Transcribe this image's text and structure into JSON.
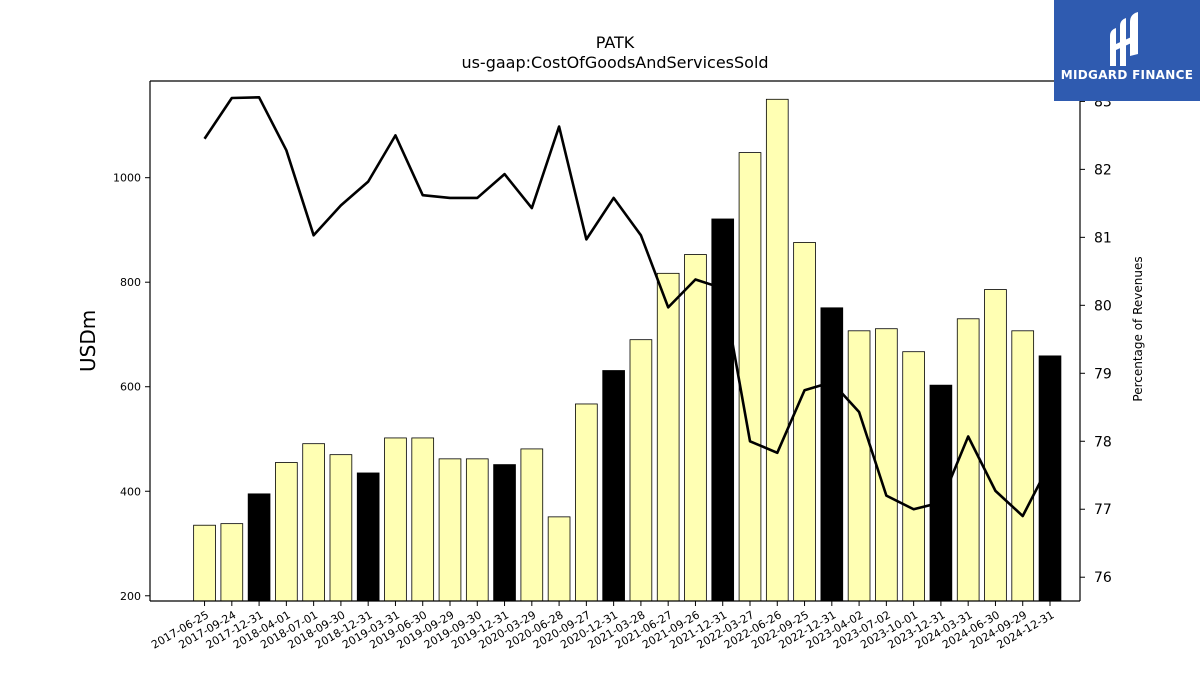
{
  "chart_data": {
    "type": "bar",
    "title": "PATK",
    "subtitle": "us-gaap:CostOfGoodsAndServicesSold",
    "ylabel": "USDm",
    "y2label": "Percentage of Revenues",
    "ylim": [
      190,
      1185
    ],
    "y2lim": [
      75.65,
      83.3
    ],
    "yticks": [
      200,
      400,
      600,
      800,
      1000
    ],
    "y2ticks": [
      76,
      77,
      78,
      79,
      80,
      81,
      82,
      83
    ],
    "categories": [
      "2017-06-25",
      "2017-09-24",
      "2017-12-31",
      "2018-04-01",
      "2018-07-01",
      "2018-09-30",
      "2018-12-31",
      "2019-03-31",
      "2019-06-30",
      "2019-09-29",
      "2019-09-30",
      "2019-12-31",
      "2020-03-29",
      "2020-06-28",
      "2020-09-27",
      "2020-12-31",
      "2021-03-28",
      "2021-06-27",
      "2021-09-26",
      "2021-12-31",
      "2022-03-27",
      "2022-06-26",
      "2022-09-25",
      "2022-12-31",
      "2023-04-02",
      "2023-07-02",
      "2023-10-01",
      "2023-12-31",
      "2024-03-31",
      "2024-06-30",
      "2024-09-29",
      "2024-12-31"
    ],
    "series": [
      {
        "name": "",
        "type": "bar",
        "values": [
          335,
          338,
          395,
          455,
          491,
          470,
          435,
          502,
          502,
          462,
          462,
          451,
          481,
          351,
          567,
          631,
          690,
          817,
          853,
          921,
          1048,
          1150,
          876,
          751,
          707,
          711,
          667,
          603,
          730,
          786,
          707,
          659
        ]
      },
      {
        "name": "",
        "type": "line",
        "axis": "right",
        "values": [
          82.45,
          83.05,
          83.06,
          82.28,
          81.03,
          81.47,
          81.82,
          82.5,
          81.62,
          81.58,
          81.58,
          81.93,
          81.43,
          82.63,
          80.97,
          81.58,
          81.03,
          79.97,
          80.38,
          80.25,
          78.0,
          77.83,
          78.75,
          78.87,
          78.43,
          77.2,
          77.0,
          77.1,
          78.07,
          77.27,
          76.9,
          77.68
        ]
      }
    ],
    "bar_colors": {
      "quarter": "#ffffb3",
      "year_end": "#000000"
    },
    "year_end_categories": [
      "2017-12-31",
      "2018-12-31",
      "2019-12-31",
      "2020-12-31",
      "2021-12-31",
      "2022-12-31",
      "2023-12-31",
      "2024-12-31"
    ],
    "grid": false,
    "legend": "none"
  },
  "logo": {
    "text": "MIDGARD FINANCE"
  }
}
